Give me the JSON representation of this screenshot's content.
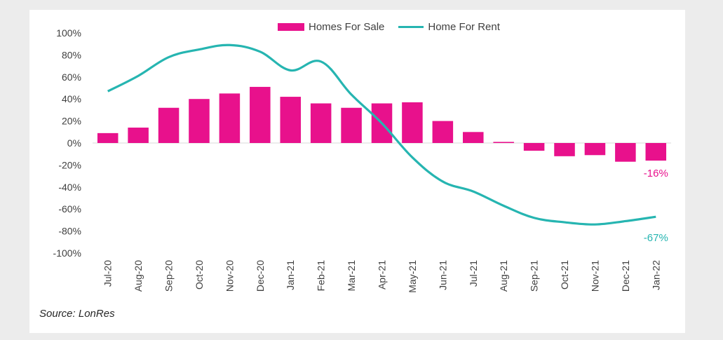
{
  "chart_data": {
    "type": "bar+line",
    "categories": [
      "Jul-20",
      "Aug-20",
      "Sep-20",
      "Oct-20",
      "Nov-20",
      "Dec-20",
      "Jan-21",
      "Feb-21",
      "Mar-21",
      "Apr-21",
      "May-21",
      "Jun-21",
      "Jul-21",
      "Aug-21",
      "Sep-21",
      "Oct-21",
      "Nov-21",
      "Dec-21",
      "Jan-22"
    ],
    "series": [
      {
        "name": "Homes For Sale",
        "type": "bar",
        "color": "#E8118C",
        "values": [
          9,
          14,
          32,
          40,
          45,
          51,
          42,
          36,
          32,
          36,
          37,
          20,
          10,
          1,
          -7,
          -12,
          -11,
          -17,
          -16
        ]
      },
      {
        "name": "Home For Rent",
        "type": "line",
        "color": "#26B5B1",
        "values": [
          47,
          61,
          78,
          85,
          89,
          83,
          66,
          74,
          44,
          18,
          -13,
          -35,
          -44,
          -57,
          -68,
          -72,
          -74,
          -71,
          -67
        ]
      }
    ],
    "yticks": [
      "100%",
      "80%",
      "60%",
      "40%",
      "20%",
      "0%",
      "-20%",
      "-40%",
      "-60%",
      "-80%",
      "-100%"
    ],
    "ylim": [
      -100,
      100
    ],
    "annotations": [
      {
        "series": "Homes For Sale",
        "category": "Jan-22",
        "text": "-16%"
      },
      {
        "series": "Home For Rent",
        "category": "Jan-22",
        "text": "-67%"
      }
    ],
    "legend_position": "top-center"
  },
  "legend": {
    "bar_label": "Homes For Sale",
    "line_label": "Home For Rent"
  },
  "source": "Source: LonRes"
}
